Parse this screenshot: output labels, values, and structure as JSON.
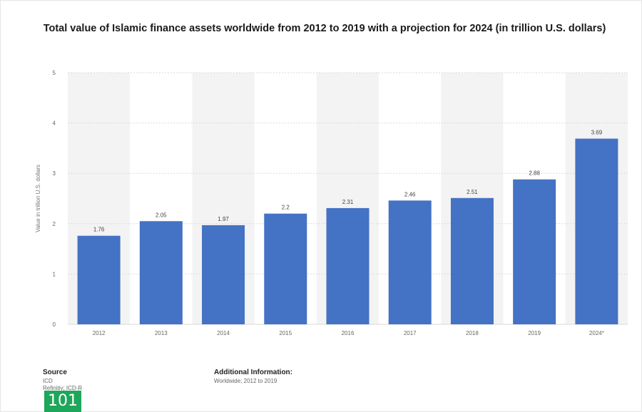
{
  "chart_data": {
    "type": "bar",
    "title": "Total value of Islamic finance assets worldwide from 2012 to 2019 with a projection for 2024 (in trillion U.S. dollars)",
    "ylabel": "Value in trillion U.S. dollars",
    "xlabel": "",
    "categories": [
      "2012",
      "2013",
      "2014",
      "2015",
      "2016",
      "2017",
      "2018",
      "2019",
      "2024*"
    ],
    "values": [
      1.76,
      2.05,
      1.97,
      2.2,
      2.31,
      2.46,
      2.51,
      2.88,
      3.69
    ],
    "data_labels": [
      "1.76",
      "2.05",
      "1.97",
      "2.2",
      "2.31",
      "2.46",
      "2.51",
      "2.88",
      "3.69"
    ],
    "ylim": [
      0,
      5
    ],
    "yticks": [
      "0",
      "1",
      "2",
      "3",
      "4",
      "5"
    ],
    "grid": true,
    "bar_color": "#4472c4"
  },
  "footer": {
    "source_label": "Source",
    "source_lines": [
      "ICD",
      "Refinitiv; ICD-R"
    ],
    "additional_label": "Additional Information:",
    "additional_text": "Worldwide; 2012 to 2019"
  },
  "badge": {
    "text": "101",
    "color": "#1ea65a"
  }
}
